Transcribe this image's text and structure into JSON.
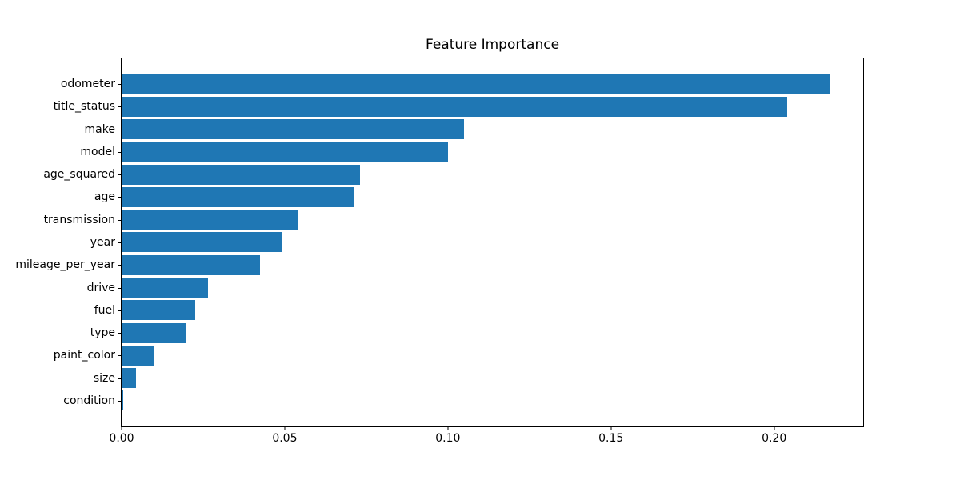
{
  "chart_data": {
    "type": "bar",
    "orientation": "horizontal",
    "title": "Feature Importance",
    "xlabel": "",
    "ylabel": "",
    "categories": [
      "odometer",
      "title_status",
      "make",
      "model",
      "age_squared",
      "age",
      "transmission",
      "year",
      "mileage_per_year",
      "drive",
      "fuel",
      "type",
      "paint_color",
      "size",
      "condition"
    ],
    "values": [
      0.217,
      0.204,
      0.105,
      0.1,
      0.073,
      0.071,
      0.054,
      0.049,
      0.0425,
      0.0265,
      0.0225,
      0.0197,
      0.0101,
      0.0045,
      0.0004
    ],
    "x_tick_values": [
      0.0,
      0.05,
      0.1,
      0.15,
      0.2
    ],
    "x_tick_labels": [
      "0.00",
      "0.05",
      "0.10",
      "0.15",
      "0.20"
    ],
    "xlim": [
      0,
      0.2273
    ],
    "bar_color": "#1f77b4",
    "grid": false,
    "legend": null
  }
}
